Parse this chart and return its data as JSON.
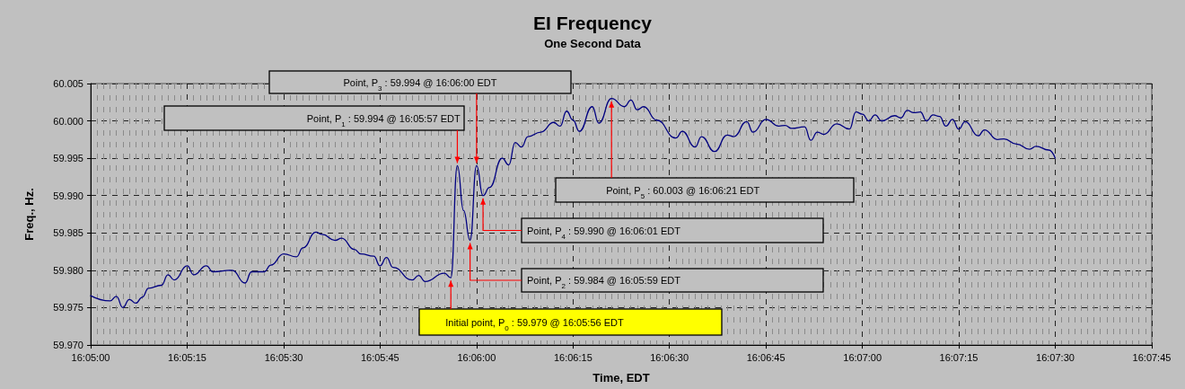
{
  "chart_data": {
    "type": "line",
    "title": "EI Frequency",
    "subtitle": "One Second Data",
    "xlabel": "Time, EDT",
    "ylabel": "Freq., Hz.",
    "x": [
      16.08333,
      16.08417,
      16.08444,
      16.08472,
      16.085,
      16.08528,
      16.08556,
      16.08583,
      16.08639,
      16.08667,
      16.08694,
      16.0875,
      16.08778,
      16.08833,
      16.08861,
      16.08944,
      16.09,
      16.09028,
      16.09083,
      16.09111,
      16.09167,
      16.09222,
      16.0925,
      16.09306,
      16.09333,
      16.09389,
      16.09417,
      16.09472,
      16.095,
      16.09556,
      16.09583,
      16.09611,
      16.09639,
      16.09722,
      16.0975,
      16.09778,
      16.09861,
      16.09889,
      16.09917,
      16.09944,
      16.09972,
      16.1,
      16.10028,
      16.10056,
      16.10111,
      16.10139,
      16.10167,
      16.10194,
      16.10222,
      16.10278,
      16.10333,
      16.10361,
      16.10389,
      16.10417,
      16.10444,
      16.105,
      16.10528,
      16.10583,
      16.10639,
      16.10667,
      16.10694,
      16.10722,
      16.10778,
      16.10861,
      16.10889,
      16.10944,
      16.10972,
      16.11028,
      16.11083,
      16.11111,
      16.11167,
      16.11194,
      16.1125,
      16.11306,
      16.11333,
      16.11361,
      16.11417,
      16.11444,
      16.11472,
      16.115,
      16.11556,
      16.11611,
      16.11639,
      16.11667,
      16.11694,
      16.11722,
      16.1175,
      16.11806,
      16.11833,
      16.11861,
      16.11889,
      16.11917,
      16.11944,
      16.11972,
      16.12,
      16.12028,
      16.12056,
      16.12083,
      16.12111,
      16.12167,
      16.12194,
      16.1225,
      16.12278,
      16.12333,
      16.12389,
      16.12417,
      16.12472,
      16.125
    ],
    "series": [
      {
        "color": "#000080",
        "values": [
          59.9766,
          59.9759,
          59.9765,
          59.975,
          59.9761,
          59.9756,
          59.9764,
          59.9776,
          59.978,
          59.9794,
          59.9787,
          59.9806,
          59.9794,
          59.9806,
          59.9798,
          59.98,
          59.9783,
          59.9798,
          59.9798,
          59.9807,
          59.9822,
          59.9818,
          59.983,
          59.9851,
          59.9848,
          59.984,
          59.9843,
          59.9828,
          59.9822,
          59.9819,
          59.9806,
          59.9817,
          59.9804,
          59.9787,
          59.9793,
          59.9785,
          59.9796,
          59.979,
          59.994,
          59.988,
          59.984,
          59.994,
          59.99,
          59.9911,
          59.995,
          59.9941,
          59.9971,
          59.9965,
          59.9979,
          59.9985,
          59.9998,
          59.9993,
          60.0013,
          60.0001,
          59.9986,
          60.0019,
          59.9997,
          60.003,
          60.0019,
          60.0028,
          60.0015,
          60.0019,
          60.0001,
          59.9977,
          59.9986,
          59.9965,
          59.9979,
          59.9959,
          59.9981,
          59.9979,
          59.9999,
          59.9985,
          60.0002,
          59.9993,
          59.9994,
          59.999,
          59.9992,
          59.9974,
          59.9985,
          59.9982,
          59.9996,
          59.9989,
          60.0012,
          60.0009,
          60.0,
          60.0008,
          60.0,
          60.0007,
          60.0004,
          60.0014,
          60.0011,
          60.0012,
          60.0,
          60.0008,
          60.0006,
          59.9993,
          60.0002,
          59.9989,
          59.9999,
          59.998,
          59.9988,
          59.9975,
          59.9976,
          59.9969,
          59.9962,
          59.9966,
          59.9961,
          59.995
        ]
      }
    ],
    "xlim": [
      16.08333,
      16.12917
    ],
    "xticks": [
      {
        "value": 16.08333,
        "label": "16:05:00"
      },
      {
        "value": 16.0875,
        "label": "16:05:15"
      },
      {
        "value": 16.09167,
        "label": "16:05:30"
      },
      {
        "value": 16.09583,
        "label": "16:05:45"
      },
      {
        "value": 16.1,
        "label": "16:06:00"
      },
      {
        "value": 16.10417,
        "label": "16:06:15"
      },
      {
        "value": 16.10833,
        "label": "16:06:30"
      },
      {
        "value": 16.1125,
        "label": "16:06:45"
      },
      {
        "value": 16.11667,
        "label": "16:07:00"
      },
      {
        "value": 16.12083,
        "label": "16:07:15"
      },
      {
        "value": 16.125,
        "label": "16:07:30"
      },
      {
        "value": 16.12917,
        "label": "16:07:45"
      }
    ],
    "ylim": [
      59.97,
      60.005
    ],
    "yticks": [
      {
        "value": 59.97,
        "label": "59.970"
      },
      {
        "value": 59.975,
        "label": "59.975"
      },
      {
        "value": 59.98,
        "label": "59.980"
      },
      {
        "value": 59.985,
        "label": "59.985"
      },
      {
        "value": 59.99,
        "label": "59.990"
      },
      {
        "value": 59.995,
        "label": "59.995"
      },
      {
        "value": 60.0,
        "label": "60.000"
      },
      {
        "value": 60.005,
        "label": "60.005"
      }
    ],
    "grid": true,
    "annotations": [
      {
        "text": "Initial point, P$_{0}$ : 59.979 @ 16:05:56 EDT",
        "x": 16.09889,
        "y": 59.979
      },
      {
        "text": "Point, P$_{1}$ : 59.994 @ 16:05:57 EDT",
        "x": 16.09917,
        "y": 59.994
      },
      {
        "text": "Point, P$_{2}$ : 59.984 @ 16:05:59 EDT",
        "x": 16.09972,
        "y": 59.984
      },
      {
        "text": "Point, P$_{3}$ : 59.994 @ 16:06:00 EDT",
        "x": 16.1,
        "y": 59.994
      },
      {
        "text": "Point, P$_{4}$ : 59.990 @ 16:06:01 EDT",
        "x": 16.10028,
        "y": 59.99
      },
      {
        "text": "Point, P$_{5}$ : 60.003 @ 16:06:21 EDT",
        "x": 16.10583,
        "y": 60.003
      }
    ]
  }
}
